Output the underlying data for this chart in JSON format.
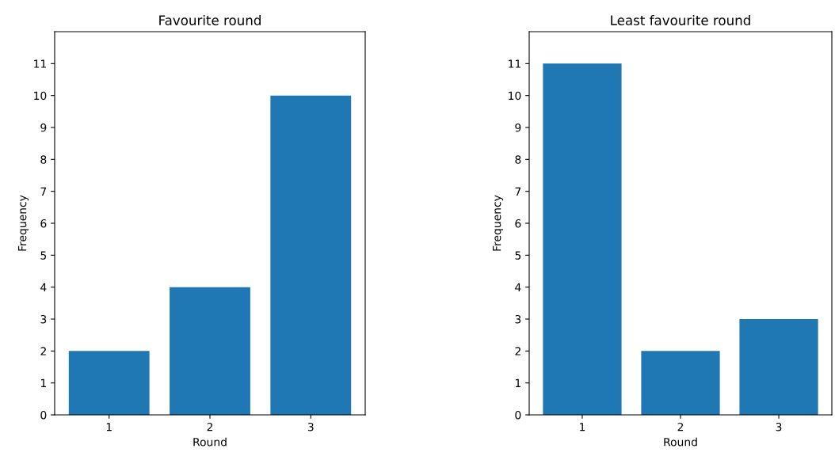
{
  "chart_data": [
    {
      "type": "bar",
      "title": "Favourite round",
      "xlabel": "Round",
      "ylabel": "Frequency",
      "categories": [
        "1",
        "2",
        "3"
      ],
      "values": [
        2,
        4,
        10
      ],
      "color": "#1f77b4",
      "ylim": [
        0,
        12
      ],
      "yticks": [
        0,
        1,
        2,
        3,
        4,
        5,
        6,
        7,
        8,
        9,
        10,
        11
      ],
      "grid": false,
      "legend": false
    },
    {
      "type": "bar",
      "title": "Least favourite round",
      "xlabel": "Round",
      "ylabel": "Frequency",
      "categories": [
        "1",
        "2",
        "3"
      ],
      "values": [
        11,
        2,
        3
      ],
      "color": "#1f77b4",
      "ylim": [
        0,
        12
      ],
      "yticks": [
        0,
        1,
        2,
        3,
        4,
        5,
        6,
        7,
        8,
        9,
        10,
        11
      ],
      "grid": false,
      "legend": false
    }
  ]
}
